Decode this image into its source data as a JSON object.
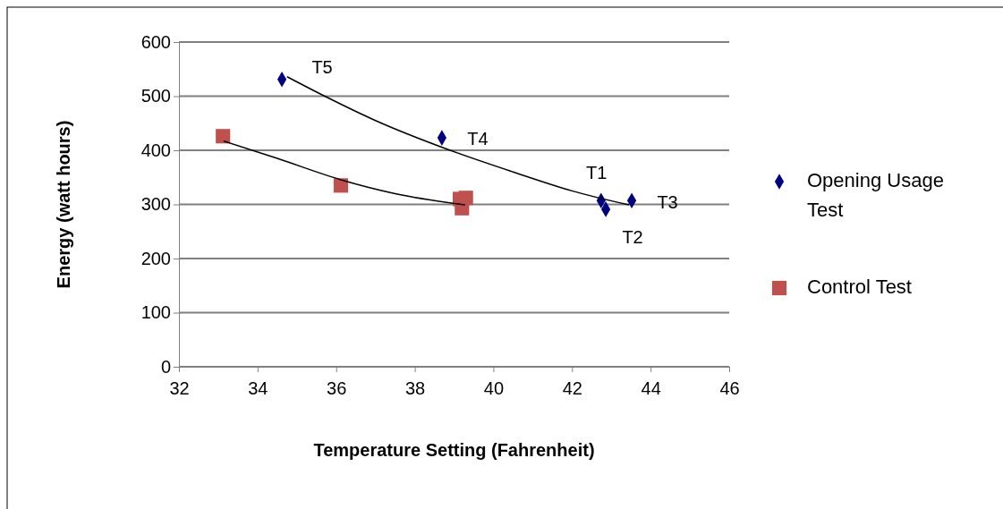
{
  "chart_data": {
    "type": "scatter",
    "xlabel": "Temperature Setting (Fahrenheit)",
    "ylabel": "Energy (watt hours)",
    "xlim": [
      32,
      46
    ],
    "xticks": [
      32,
      34,
      36,
      38,
      40,
      42,
      44,
      46
    ],
    "ylim": [
      0,
      600
    ],
    "yticks": [
      0,
      100,
      200,
      300,
      400,
      500,
      600
    ],
    "grid": "y",
    "legend": "right",
    "series": [
      {
        "name": "Opening Usage Test",
        "color": "#000080",
        "marker": "diamond",
        "x": [
          34.62,
          38.69,
          42.74,
          42.86,
          43.52
        ],
        "values": [
          531,
          423,
          307,
          291,
          307
        ]
      },
      {
        "name": "Control Test",
        "color": "#c0504d",
        "marker": "square",
        "x": [
          33.12,
          36.12,
          39.15,
          39.3,
          39.2
        ],
        "values": [
          426,
          335,
          310,
          312,
          293
        ]
      },
      {
        "type": "line",
        "color": "#000000",
        "marker": "none",
        "x": [
          34.75,
          35.71,
          37,
          38.9,
          40.5,
          42,
          43.45
        ],
        "values": [
          536,
          500,
          455,
          400,
          360,
          325,
          299
        ]
      },
      {
        "type": "line",
        "color": "#000000",
        "marker": "none",
        "x": [
          33.14,
          34.5,
          36.1,
          37.5,
          39.28
        ],
        "values": [
          417,
          385,
          346,
          320,
          299
        ]
      }
    ],
    "annotations": [
      {
        "text": "T5",
        "x": 34.62,
        "y": 531
      },
      {
        "text": "T4",
        "x": 38.69,
        "y": 423
      },
      {
        "text": "T1",
        "x": 42.74,
        "y": 307
      },
      {
        "text": "T2",
        "x": 42.86,
        "y": 291
      },
      {
        "text": "T3",
        "x": 43.52,
        "y": 307
      }
    ]
  }
}
